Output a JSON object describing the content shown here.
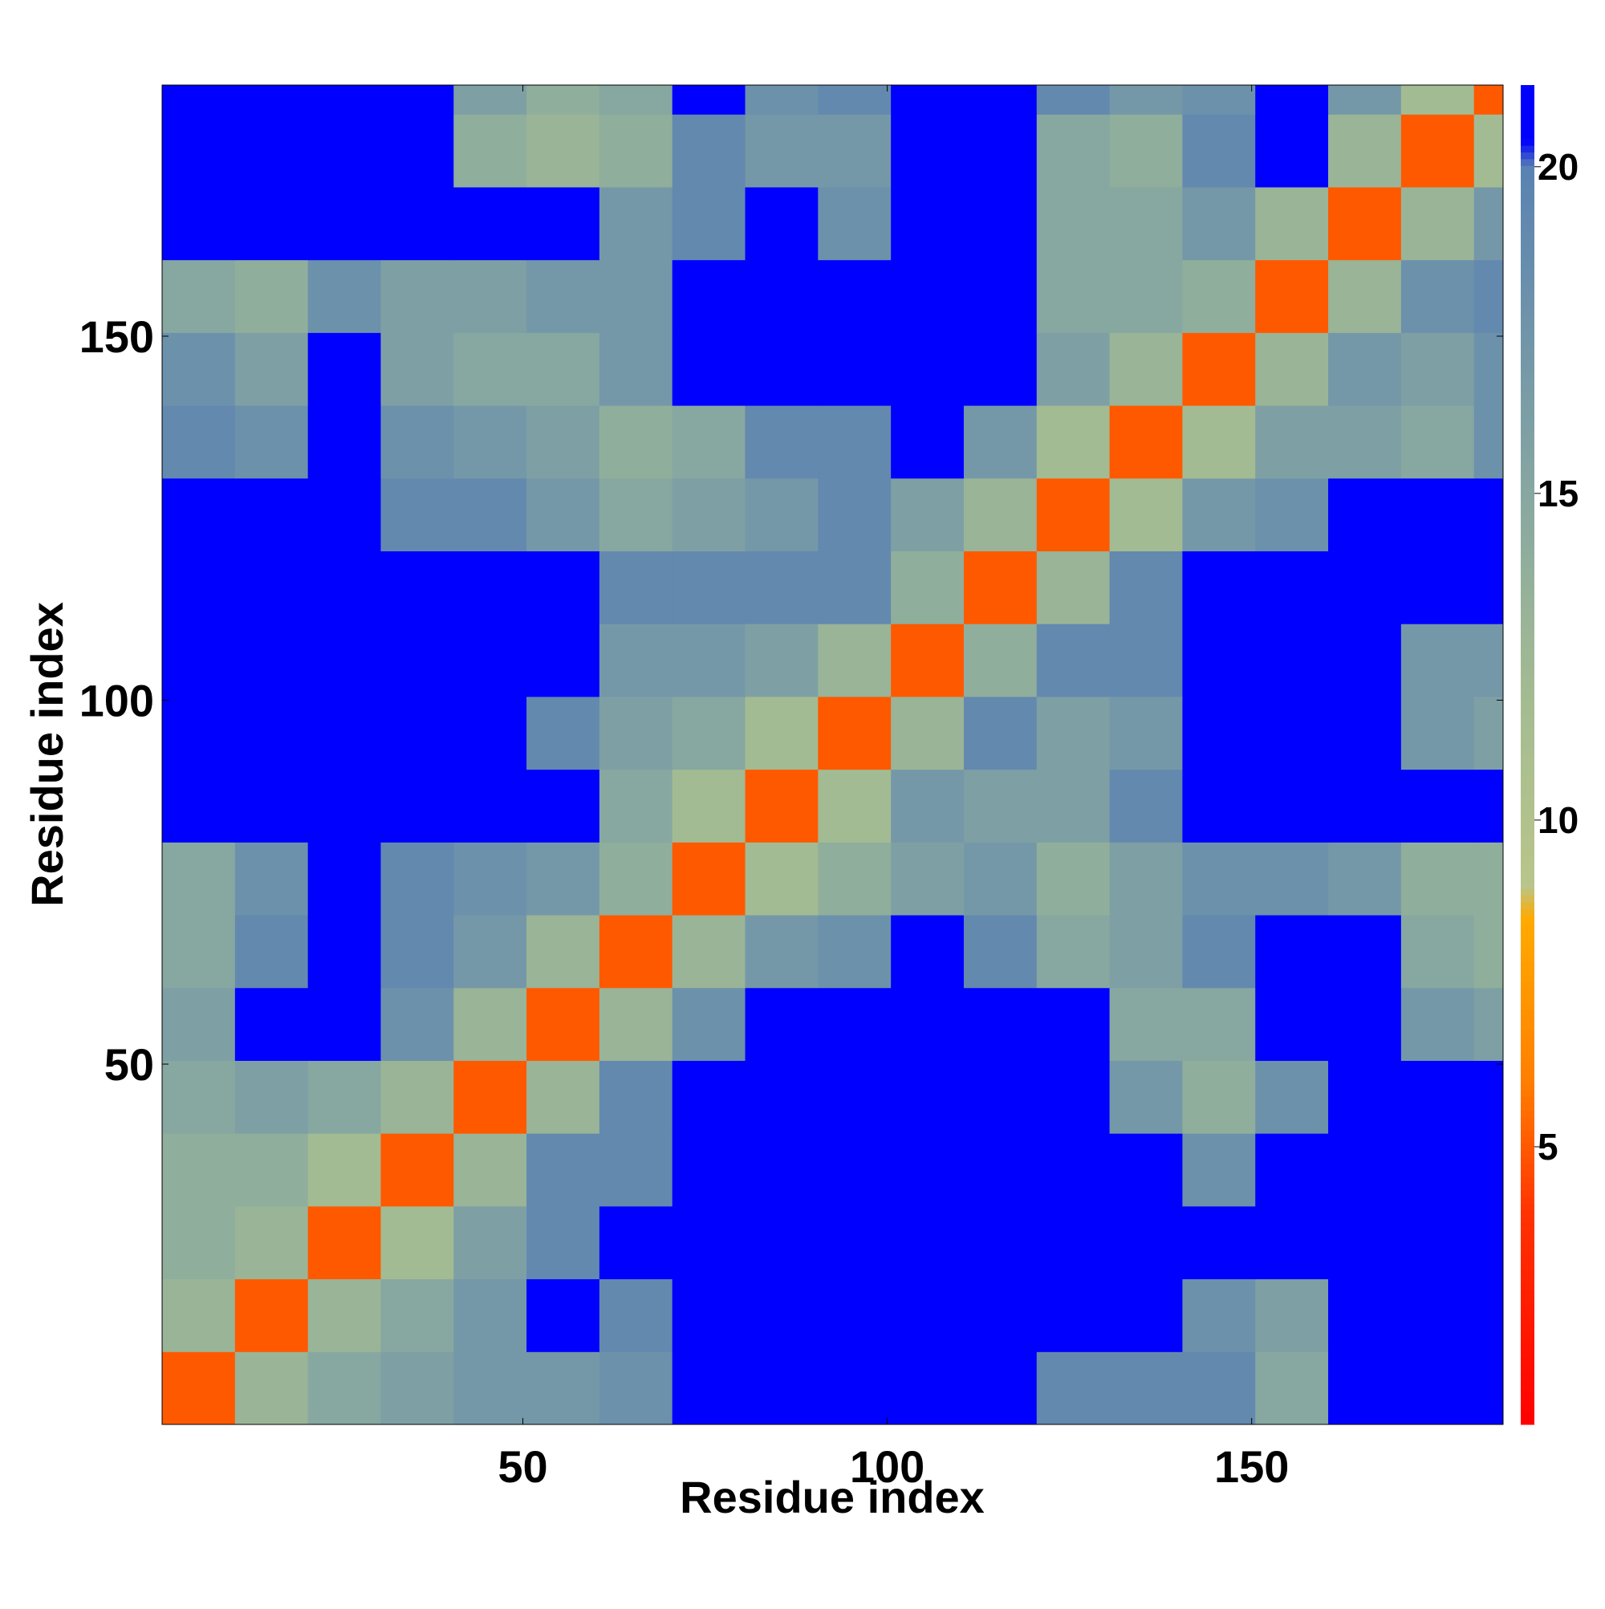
{
  "chart_data": {
    "type": "heatmap",
    "xlabel": "Residue index",
    "ylabel": "Residue index",
    "x_edges": [
      0.5,
      10.5,
      20.5,
      30.5,
      40.5,
      50.5,
      60.5,
      70.5,
      80.5,
      90.5,
      100.5,
      110.5,
      120.5,
      130.5,
      140.5,
      150.5,
      160.5,
      170.5,
      180.5,
      184.5
    ],
    "y_edges": [
      0.5,
      10.5,
      20.5,
      30.5,
      40.5,
      50.5,
      60.5,
      70.5,
      80.5,
      90.5,
      100.5,
      110.5,
      120.5,
      130.5,
      140.5,
      150.5,
      160.5,
      170.5,
      180.5,
      184.5
    ],
    "z": [
      [
        5,
        13,
        15,
        16,
        17,
        17,
        18,
        21,
        21,
        21,
        21,
        21,
        19,
        19,
        19,
        15,
        21,
        21,
        21
      ],
      [
        13,
        5,
        13,
        15,
        17,
        21,
        19,
        21,
        21,
        21,
        21,
        21,
        21,
        21,
        18,
        16,
        21,
        21,
        21
      ],
      [
        14,
        13,
        5,
        12,
        16,
        19,
        21,
        21,
        21,
        21,
        21,
        21,
        21,
        21,
        21,
        21,
        21,
        21,
        21
      ],
      [
        14,
        14,
        12,
        5,
        13,
        19,
        19,
        21,
        21,
        21,
        21,
        21,
        21,
        21,
        18,
        21,
        21,
        21,
        21
      ],
      [
        15,
        16,
        15,
        13,
        5,
        13,
        19,
        21,
        21,
        21,
        21,
        21,
        21,
        17,
        14,
        18,
        21,
        21,
        21
      ],
      [
        16,
        21,
        21,
        18,
        13,
        5,
        13,
        18,
        21,
        21,
        21,
        21,
        21,
        15,
        15,
        21,
        21,
        17,
        16
      ],
      [
        15,
        19,
        21,
        19,
        17,
        13,
        5,
        13,
        17,
        18,
        21,
        19,
        15,
        16,
        19,
        21,
        21,
        15,
        14
      ],
      [
        15,
        18,
        21,
        19,
        18,
        17,
        14,
        5,
        12,
        14,
        16,
        17,
        14,
        16,
        18,
        18,
        17,
        14,
        14
      ],
      [
        21,
        21,
        21,
        21,
        21,
        21,
        15,
        12,
        5,
        12,
        17,
        16,
        16,
        19,
        21,
        21,
        21,
        21,
        21
      ],
      [
        21,
        21,
        21,
        21,
        21,
        19,
        16,
        15,
        12,
        5,
        13,
        19,
        16,
        17,
        21,
        21,
        21,
        17,
        16
      ],
      [
        21,
        21,
        21,
        21,
        21,
        21,
        17,
        17,
        16,
        13,
        5,
        14,
        19,
        19,
        21,
        21,
        21,
        17,
        17
      ],
      [
        21,
        21,
        21,
        21,
        21,
        21,
        19,
        19,
        19,
        19,
        14,
        5,
        13,
        19,
        21,
        21,
        21,
        21,
        21
      ],
      [
        21,
        21,
        21,
        19,
        19,
        17,
        15,
        16,
        17,
        19,
        16,
        13,
        5,
        12,
        17,
        18,
        21,
        21,
        21
      ],
      [
        19,
        18,
        21,
        18,
        17,
        16,
        14,
        15,
        19,
        19,
        21,
        17,
        12,
        5,
        12,
        16,
        16,
        15,
        18
      ],
      [
        18,
        16,
        21,
        16,
        15,
        15,
        17,
        21,
        21,
        21,
        21,
        21,
        16,
        13,
        5,
        13,
        17,
        16,
        18
      ],
      [
        15,
        14,
        18,
        16,
        16,
        17,
        17,
        21,
        21,
        21,
        21,
        21,
        15,
        15,
        14,
        5,
        13,
        18,
        19
      ],
      [
        21,
        21,
        21,
        21,
        21,
        21,
        17,
        19,
        21,
        18,
        21,
        21,
        15,
        15,
        17,
        13,
        5,
        13,
        17
      ],
      [
        21,
        21,
        21,
        21,
        14,
        13,
        14,
        19,
        17,
        17,
        21,
        21,
        15,
        14,
        19,
        21,
        13,
        5,
        12
      ],
      [
        21,
        21,
        21,
        21,
        16,
        14,
        15,
        21,
        18,
        19,
        21,
        21,
        19,
        17,
        18,
        21,
        17,
        12,
        5
      ]
    ],
    "xlim": [
      0.5,
      184.5
    ],
    "ylim": [
      0.5,
      184.5
    ],
    "xticks": [
      50,
      100,
      150
    ],
    "yticks": [
      50,
      100,
      150
    ],
    "clim": [
      0.75,
      21.25
    ],
    "cticks": [
      5,
      10,
      15,
      20
    ],
    "colorscale": [
      [
        0.75,
        "#ff0000"
      ],
      [
        4,
        "#ff3300"
      ],
      [
        6,
        "#ff7f00"
      ],
      [
        8.5,
        "#ffaa00"
      ],
      [
        9,
        "#b9c58a"
      ],
      [
        12,
        "#a3bb92"
      ],
      [
        15,
        "#87a7a1"
      ],
      [
        20,
        "#5a82b2"
      ],
      [
        20.4,
        "#0000ff"
      ],
      [
        21.25,
        "#0000ff"
      ]
    ]
  }
}
